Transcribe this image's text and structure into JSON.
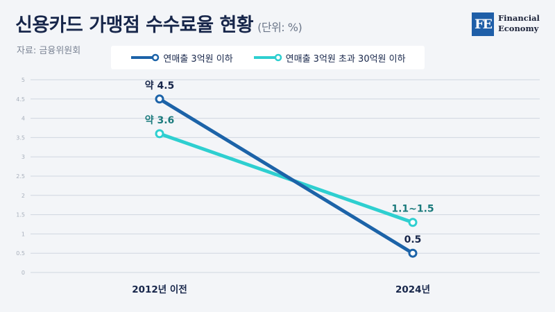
{
  "header": {
    "title": "신용카드 가맹점 수수료율 현황",
    "unit": "(단위: %)",
    "source": "자료: 금융위원회"
  },
  "logo": {
    "mark": "FE",
    "line1": "Financial",
    "line2": "Economy"
  },
  "colors": {
    "series1": "#1c63a8",
    "series2": "#2ecfd0",
    "label1": "#17264a",
    "label2": "#1a7a7c",
    "grid": "#cfd6e0"
  },
  "chart_data": {
    "type": "line",
    "categories": [
      "2012년 이전",
      "2024년"
    ],
    "ylim": [
      0,
      5
    ],
    "yticks": [
      "0",
      "0.5",
      "1",
      "1.5",
      "2",
      "2.5",
      "3",
      "3.5",
      "4",
      "4.5",
      "5"
    ],
    "grid": true,
    "legend_position": "top",
    "series": [
      {
        "name": "연매출 3억원 이하",
        "values": [
          4.5,
          0.5
        ],
        "labels": [
          "약 4.5",
          "0.5"
        ]
      },
      {
        "name": "연매출 3억원 초과 30억원 이하",
        "values": [
          3.6,
          1.3
        ],
        "labels": [
          "약 3.6",
          "1.1~1.5"
        ]
      }
    ]
  }
}
